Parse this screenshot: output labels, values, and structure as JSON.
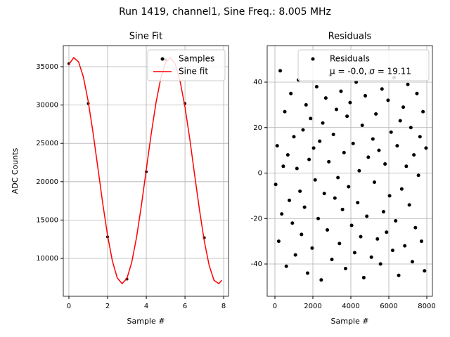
{
  "title": "Run 1419, channel1, Sine Freq.: 8.005 MHz",
  "chart_data": [
    {
      "type": "line",
      "title": "Sine Fit",
      "x_label": "Sample #",
      "y_label": "ADC Counts",
      "xlim": [
        -0.29,
        8.25
      ],
      "ylim": [
        5055,
        37747
      ],
      "xticks": [
        0,
        2,
        4,
        6,
        8
      ],
      "yticks": [
        10000,
        15000,
        20000,
        25000,
        30000,
        35000
      ],
      "grid": true,
      "legend": "upper right",
      "series": [
        {
          "name": "Samples",
          "color": "#000000",
          "style": "markers",
          "x": [
            0,
            1,
            2,
            3,
            4,
            5,
            6,
            7
          ],
          "values": [
            35400,
            30200,
            12800,
            7300,
            21300,
            35900,
            30200,
            12700
          ]
        },
        {
          "name": "Sine fit",
          "color": "#ff0000",
          "style": "line",
          "x": [
            0,
            0.25,
            0.5,
            0.75,
            1,
            1.25,
            1.5,
            1.75,
            2,
            2.25,
            2.5,
            2.75,
            3,
            3.25,
            3.5,
            3.75,
            4,
            4.25,
            4.5,
            4.75,
            5,
            5.25,
            5.5,
            5.75,
            6,
            6.25,
            6.5,
            6.75,
            7,
            7.25,
            7.5,
            7.75,
            7.9
          ],
          "values": [
            35278,
            36190,
            35629,
            33653,
            30448,
            26361,
            21779,
            17162,
            12970,
            9631,
            7448,
            6700,
            7396,
            9497,
            12789,
            16950,
            21580,
            26161,
            30272,
            33508,
            35578,
            36193,
            35331,
            33085,
            29731,
            25540,
            20863,
            16318,
            12227,
            9076,
            7139,
            6703,
            7148
          ]
        }
      ]
    },
    {
      "type": "scatter",
      "title": "Residuals",
      "x_label": "Sample #",
      "xlim": [
        -407,
        8296
      ],
      "ylim": [
        -54.2,
        56.06
      ],
      "xticks": [
        0,
        2000,
        4000,
        6000,
        8000
      ],
      "yticks": [
        -40,
        -20,
        0,
        20,
        40
      ],
      "grid": true,
      "legend": "upper right",
      "annotation": "μ = -0.0, σ = 19.11",
      "series": [
        {
          "name": "Residuals",
          "color": "#000000",
          "style": "markers",
          "x": [
            40,
            120,
            200,
            280,
            360,
            440,
            520,
            600,
            680,
            760,
            840,
            920,
            1000,
            1080,
            1160,
            1240,
            1320,
            1400,
            1480,
            1560,
            1640,
            1720,
            1800,
            1880,
            1960,
            2040,
            2120,
            2200,
            2280,
            2360,
            2440,
            2520,
            2600,
            2680,
            2760,
            2840,
            2920,
            3000,
            3080,
            3160,
            3240,
            3320,
            3400,
            3480,
            3560,
            3640,
            3720,
            3800,
            3880,
            3960,
            4040,
            4120,
            4200,
            4280,
            4360,
            4440,
            4520,
            4600,
            4680,
            4760,
            4840,
            4920,
            5000,
            5080,
            5160,
            5240,
            5320,
            5400,
            5480,
            5560,
            5640,
            5720,
            5800,
            5880,
            5960,
            6040,
            6120,
            6200,
            6280,
            6360,
            6440,
            6520,
            6600,
            6680,
            6760,
            6840,
            6920,
            7000,
            7080,
            7160,
            7240,
            7320,
            7400,
            7480,
            7560,
            7640,
            7720,
            7800,
            7880,
            7960
          ],
          "values": [
            -5,
            12,
            -30,
            45,
            -18,
            3,
            27,
            -41,
            8,
            -12,
            35,
            -22,
            16,
            -36,
            2,
            41,
            -8,
            -27,
            19,
            -15,
            30,
            -44,
            6,
            24,
            -33,
            11,
            -3,
            38,
            -20,
            14,
            -47,
            22,
            -9,
            33,
            -25,
            5,
            43,
            -38,
            17,
            -11,
            28,
            -2,
            -31,
            36,
            -16,
            9,
            -42,
            25,
            -6,
            31,
            -23,
            13,
            -35,
            40,
            -13,
            1,
            -28,
            21,
            -46,
            34,
            -19,
            7,
            44,
            -37,
            15,
            -4,
            26,
            -29,
            10,
            -40,
            37,
            -17,
            4,
            -26,
            32,
            -10,
            18,
            -34,
            42,
            -21,
            12,
            -45,
            23,
            -7,
            29,
            -32,
            3,
            39,
            -14,
            20,
            -39,
            8,
            -24,
            35,
            -1,
            16,
            -30,
            27,
            -43,
            11
          ]
        }
      ]
    }
  ]
}
